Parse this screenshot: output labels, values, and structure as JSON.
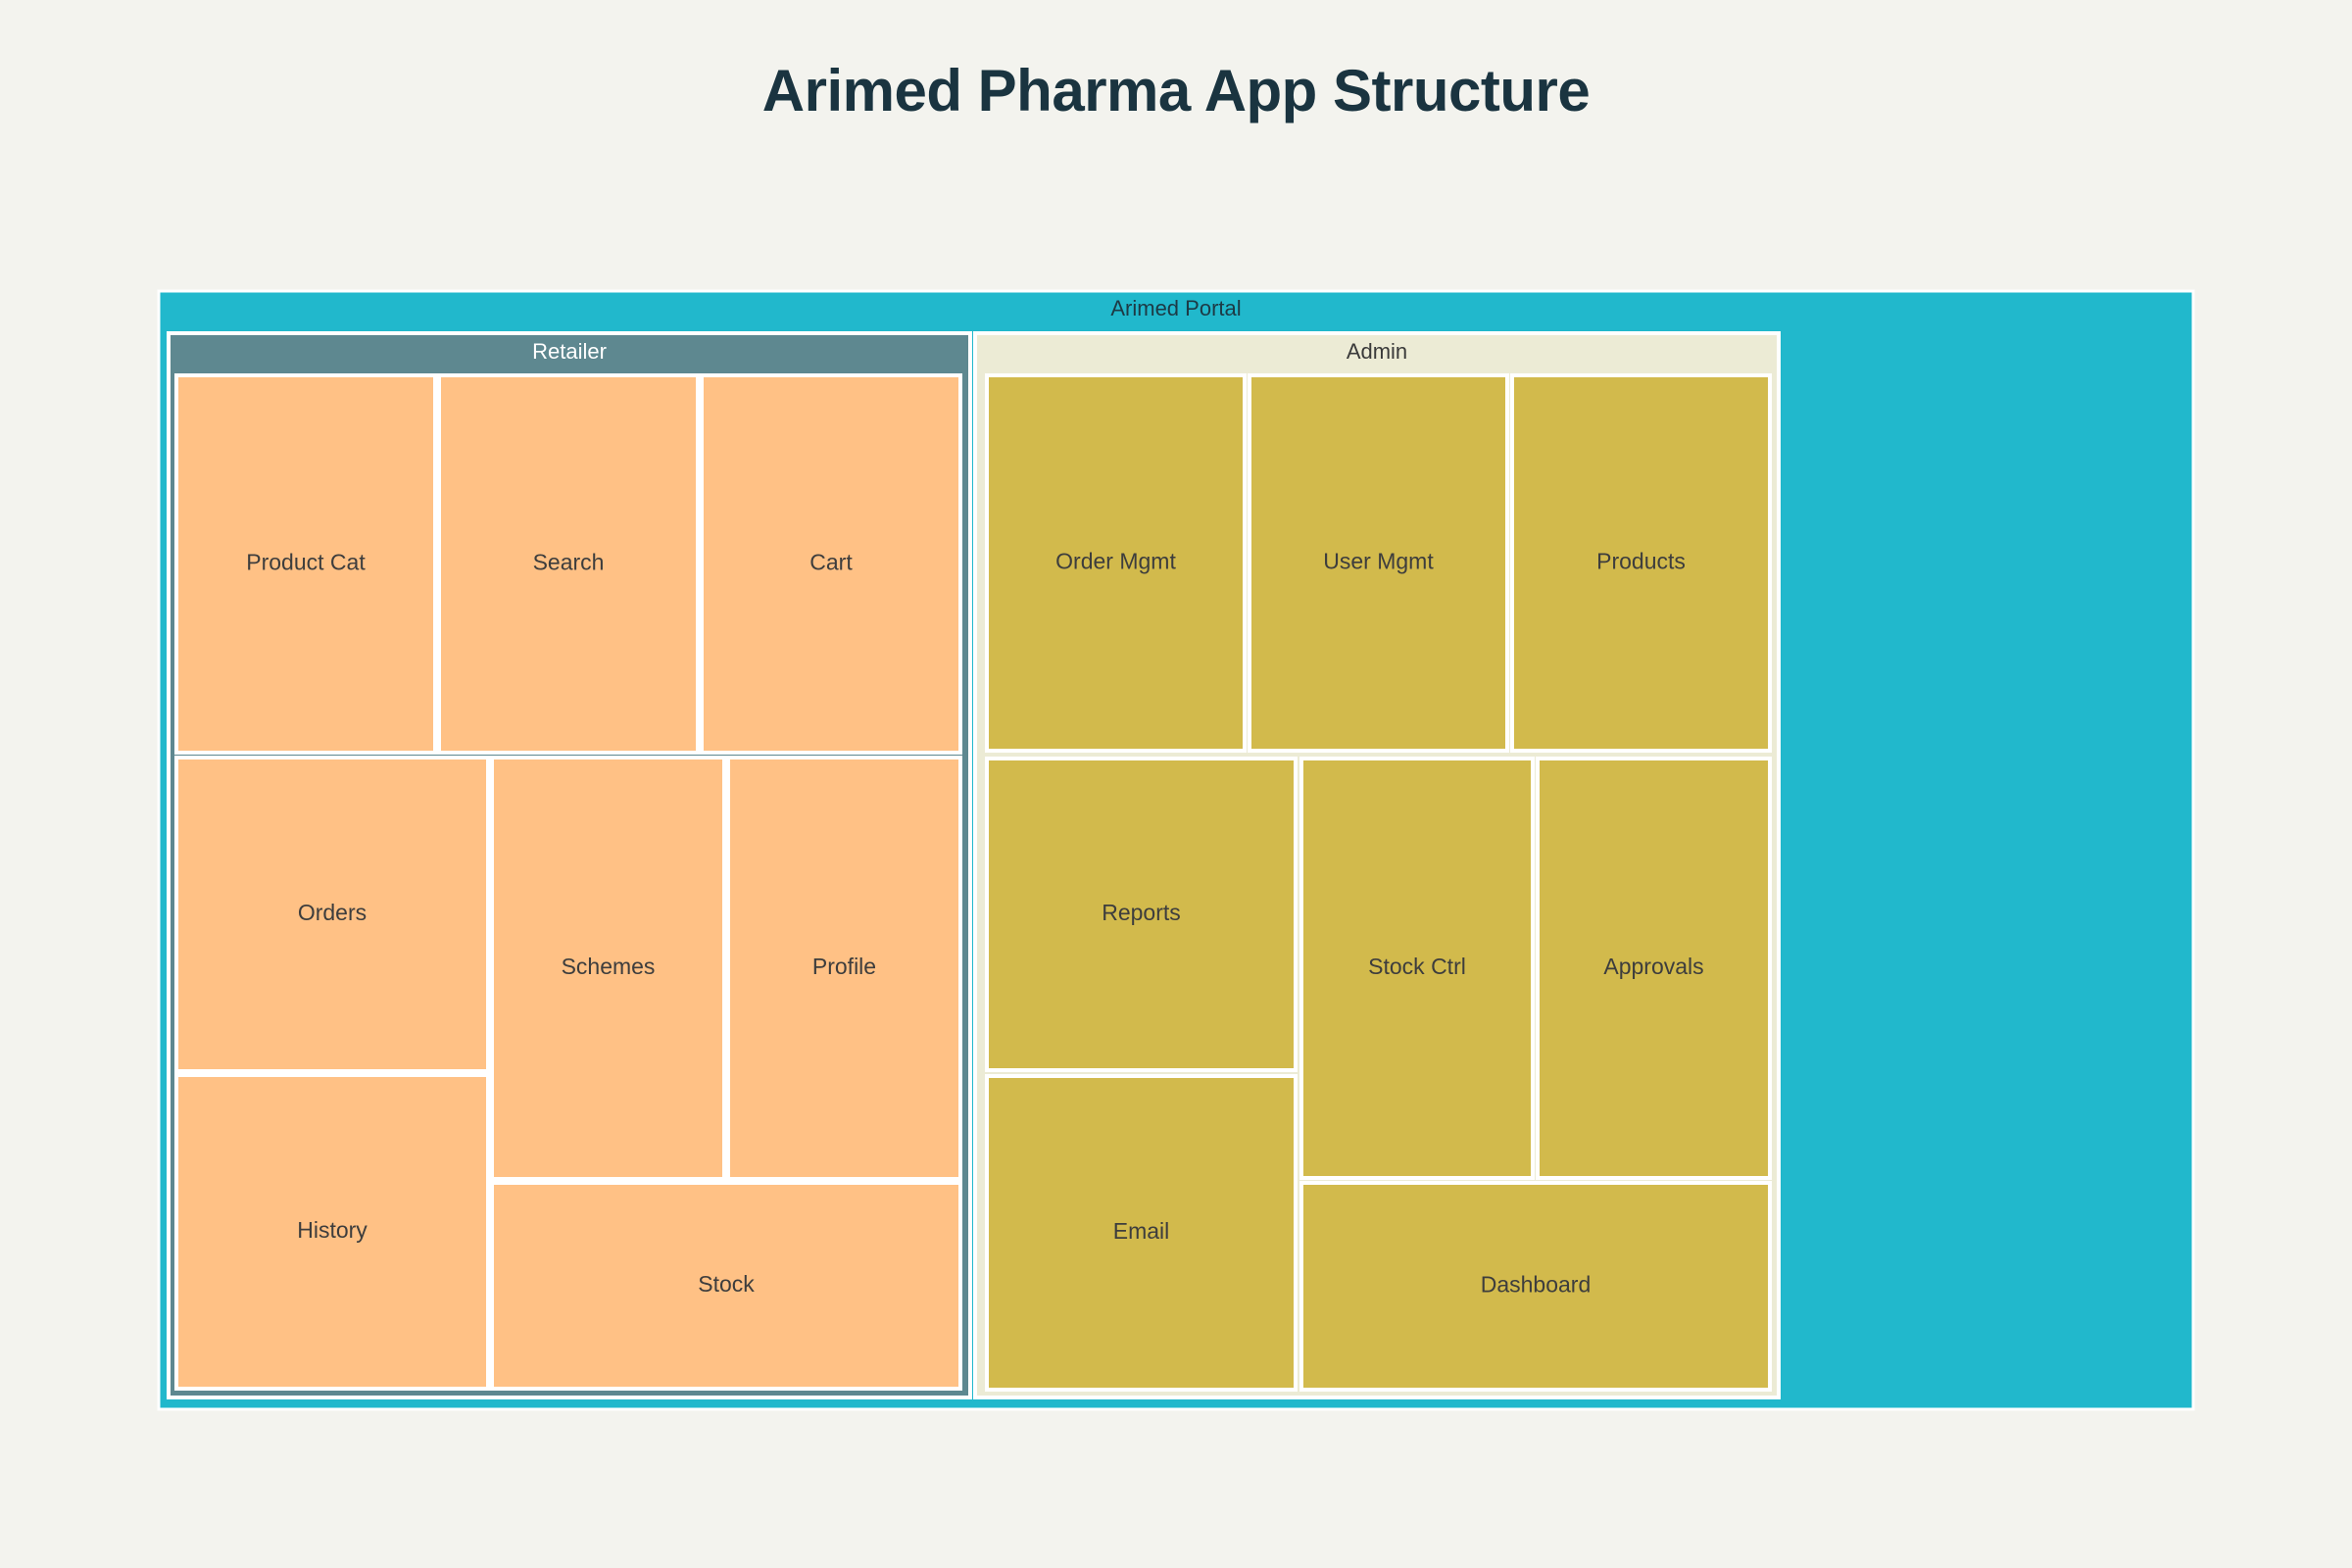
{
  "title": "Arimed Pharma App Structure",
  "chart_data": {
    "type": "treemap",
    "title": "Arimed Pharma App Structure",
    "root": {
      "label": "Arimed Portal",
      "color": "#21b8cc",
      "children": [
        {
          "label": "Retailer",
          "color": "#5e8890",
          "leaf_color": "#ffc185",
          "children": [
            {
              "label": "Product Cat"
            },
            {
              "label": "Search"
            },
            {
              "label": "Cart"
            },
            {
              "label": "Orders"
            },
            {
              "label": "Schemes"
            },
            {
              "label": "Profile"
            },
            {
              "label": "History"
            },
            {
              "label": "Stock"
            }
          ]
        },
        {
          "label": "Admin",
          "color": "#ecebd5",
          "leaf_color": "#d2ba4c",
          "children": [
            {
              "label": "Order Mgmt"
            },
            {
              "label": "User Mgmt"
            },
            {
              "label": "Products"
            },
            {
              "label": "Reports"
            },
            {
              "label": "Stock Ctrl"
            },
            {
              "label": "Approvals"
            },
            {
              "label": "Email"
            },
            {
              "label": "Dashboard"
            }
          ]
        }
      ]
    }
  }
}
